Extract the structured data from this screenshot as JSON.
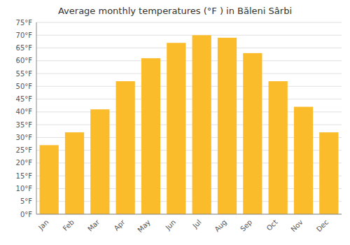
{
  "chart_data": {
    "type": "bar",
    "title": "Average monthly temperatures (°F ) in Băleni Sârbi",
    "categories": [
      "Jan",
      "Feb",
      "Mar",
      "Apr",
      "May",
      "Jun",
      "Jul",
      "Aug",
      "Sep",
      "Oct",
      "Nov",
      "Dec"
    ],
    "values": [
      27,
      32,
      41,
      52,
      61,
      67,
      70,
      69,
      63,
      52,
      42,
      32
    ],
    "color": "#FBBC2B",
    "ylim": [
      0,
      75
    ],
    "yticks": [
      {
        "value": 0,
        "label": "0°F"
      },
      {
        "value": 5,
        "label": "5°F"
      },
      {
        "value": 10,
        "label": "10°F"
      },
      {
        "value": 15,
        "label": "15°F"
      },
      {
        "value": 20,
        "label": "20°F"
      },
      {
        "value": 25,
        "label": "25°F"
      },
      {
        "value": 30,
        "label": "30°F"
      },
      {
        "value": 35,
        "label": "35°F"
      },
      {
        "value": 40,
        "label": "40°F"
      },
      {
        "value": 45,
        "label": "45°F"
      },
      {
        "value": 50,
        "label": "50°F"
      },
      {
        "value": 55,
        "label": "55°F"
      },
      {
        "value": 60,
        "label": "60°F"
      },
      {
        "value": 65,
        "label": "65°F"
      },
      {
        "value": 70,
        "label": "70°F"
      },
      {
        "value": 75,
        "label": "75°F"
      }
    ],
    "grid": true
  }
}
